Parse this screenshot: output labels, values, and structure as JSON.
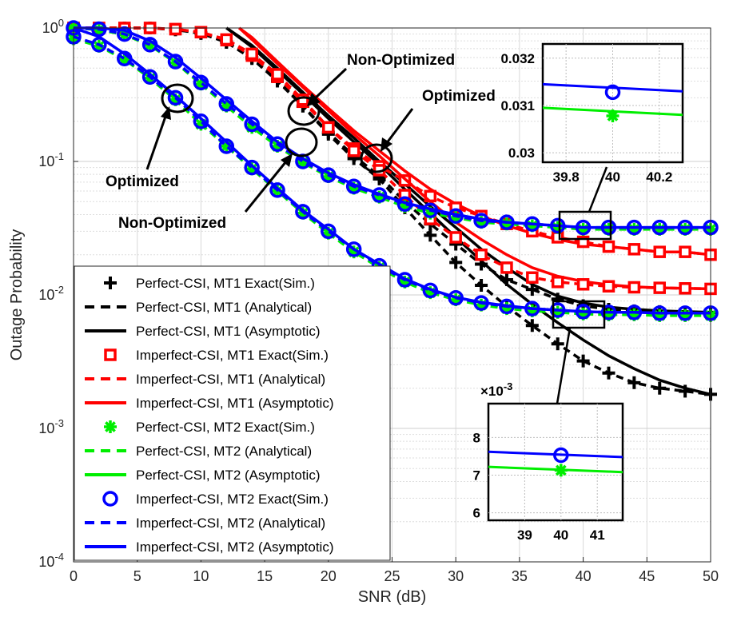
{
  "chart_data": {
    "type": "line",
    "yscale": "log",
    "xlabel": "SNR (dB)",
    "ylabel": "Outage Probability",
    "xlim": [
      0,
      50
    ],
    "ylim": [
      0.0001,
      1
    ],
    "grid": true,
    "x_ticks": [
      "0",
      "5",
      "10",
      "15",
      "20",
      "25",
      "30",
      "35",
      "40",
      "45",
      "50"
    ],
    "y_ticks": [
      {
        "base": "10",
        "exp": "0"
      },
      {
        "base": "10",
        "exp": "-1"
      },
      {
        "base": "10",
        "exp": "-2"
      },
      {
        "base": "10",
        "exp": "-3"
      },
      {
        "base": "10",
        "exp": "-4"
      }
    ],
    "legend": {
      "position": "bottom-left",
      "entries": [
        "Perfect-CSI, MT1 Exact(Sim.)",
        "Perfect-CSI, MT1 (Analytical)",
        "Perfect-CSI, MT1 (Asymptotic)",
        "Imperfect-CSI, MT1 Exact(Sim.)",
        "Imperfect-CSI, MT1 (Analytical)",
        "Imperfect-CSI, MT1 (Asymptotic)",
        "Perfect-CSI, MT2 Exact(Sim.)",
        "Perfect-CSI, MT2 (Analytical)",
        "Perfect-CSI, MT2 (Asymptotic)",
        "Imperfect-CSI, MT2 Exact(Sim.)",
        "Imperfect-CSI, MT2 (Analytical)",
        "Imperfect-CSI, MT2 (Asymptotic)"
      ]
    },
    "colors": {
      "mt1_perfect": "#000000",
      "mt1_imperfect": "#ff0000",
      "mt2_perfect": "#00ee00",
      "mt2_imperfect": "#0000ff"
    },
    "series": [
      {
        "name": "MT1 Optimized Perfect-CSI",
        "color": "#000000",
        "marker": "plus",
        "x": [
          0,
          2,
          4,
          6,
          8,
          10,
          12,
          14,
          16,
          18,
          20,
          22,
          24,
          26,
          28,
          30,
          32,
          34,
          36,
          38,
          40,
          42,
          44,
          46,
          48,
          50
        ],
        "values": [
          1.0,
          1.0,
          1.0,
          1.0,
          0.97,
          0.91,
          0.78,
          0.59,
          0.4,
          0.26,
          0.16,
          0.105,
          0.074,
          0.045,
          0.028,
          0.0175,
          0.0118,
          0.0082,
          0.0059,
          0.0043,
          0.0032,
          0.0026,
          0.0022,
          0.002,
          0.0019,
          0.0018
        ],
        "asymptote": {
          "x": [
            12,
            14,
            16,
            18,
            20,
            22,
            24,
            26,
            28,
            30,
            32,
            34,
            36,
            38,
            40,
            42,
            44,
            46,
            48,
            50
          ],
          "values": [
            1.0,
            0.72,
            0.48,
            0.32,
            0.21,
            0.14,
            0.095,
            0.062,
            0.041,
            0.027,
            0.018,
            0.012,
            0.0085,
            0.0062,
            0.0046,
            0.0035,
            0.0028,
            0.0023,
            0.002,
            0.0018
          ]
        }
      },
      {
        "name": "MT1 Non-Optimized Perfect-CSI",
        "color": "#000000",
        "marker": "plus",
        "x": [
          0,
          2,
          4,
          6,
          8,
          10,
          12,
          14,
          16,
          18,
          20,
          22,
          24,
          26,
          28,
          30,
          32,
          34,
          36,
          38,
          40,
          42,
          44,
          46,
          48,
          50
        ],
        "values": [
          1.0,
          1.0,
          1.0,
          1.0,
          0.97,
          0.92,
          0.79,
          0.6,
          0.41,
          0.26,
          0.165,
          0.11,
          0.078,
          0.05,
          0.034,
          0.024,
          0.017,
          0.013,
          0.011,
          0.0093,
          0.0083,
          0.0078,
          0.0076,
          0.0075,
          0.0074,
          0.0074
        ],
        "asymptote": {
          "x": [
            12,
            14,
            16,
            18,
            20,
            22,
            24,
            26,
            28,
            30,
            32,
            34,
            36,
            38,
            40,
            42,
            44,
            46,
            48,
            50
          ],
          "values": [
            1.0,
            0.74,
            0.5,
            0.33,
            0.22,
            0.15,
            0.1,
            0.068,
            0.046,
            0.032,
            0.022,
            0.016,
            0.012,
            0.0098,
            0.0087,
            0.0081,
            0.0078,
            0.0076,
            0.0075,
            0.0074
          ]
        }
      },
      {
        "name": "MT1 Optimized Imperfect-CSI",
        "color": "#ff0000",
        "marker": "square",
        "x": [
          0,
          2,
          4,
          6,
          8,
          10,
          12,
          14,
          16,
          18,
          20,
          22,
          24,
          26,
          28,
          30,
          32,
          34,
          36,
          38,
          40,
          42,
          44,
          46,
          48,
          50
        ],
        "values": [
          1.0,
          1.0,
          1.0,
          1.0,
          0.98,
          0.93,
          0.81,
          0.62,
          0.43,
          0.28,
          0.18,
          0.125,
          0.092,
          0.072,
          0.055,
          0.045,
          0.039,
          0.034,
          0.03,
          0.027,
          0.025,
          0.023,
          0.022,
          0.021,
          0.021,
          0.02
        ],
        "asymptote": {
          "x": [
            13,
            14,
            16,
            18,
            20,
            22,
            24,
            26,
            28,
            30,
            32,
            34,
            36,
            38,
            40,
            42,
            44,
            46,
            48,
            50
          ],
          "values": [
            1.0,
            0.85,
            0.56,
            0.37,
            0.25,
            0.17,
            0.12,
            0.085,
            0.062,
            0.048,
            0.039,
            0.033,
            0.029,
            0.026,
            0.024,
            0.023,
            0.022,
            0.021,
            0.021,
            0.02
          ]
        }
      },
      {
        "name": "MT1 Non-Optimized Imperfect-CSI",
        "color": "#ff0000",
        "marker": "square",
        "x": [
          0,
          2,
          4,
          6,
          8,
          10,
          12,
          14,
          16,
          18,
          20,
          22,
          24,
          26,
          28,
          30,
          32,
          34,
          36,
          38,
          40,
          42,
          44,
          46,
          48,
          50
        ],
        "values": [
          1.0,
          1.0,
          1.0,
          1.0,
          0.98,
          0.93,
          0.82,
          0.64,
          0.45,
          0.29,
          0.18,
          0.12,
          0.086,
          0.056,
          0.037,
          0.027,
          0.02,
          0.016,
          0.0135,
          0.0125,
          0.012,
          0.0116,
          0.0114,
          0.0113,
          0.0112,
          0.0111
        ],
        "asymptote": {
          "x": [
            13,
            14,
            16,
            18,
            20,
            22,
            24,
            26,
            28,
            30,
            32,
            34,
            36,
            38,
            40,
            42,
            44,
            46,
            48,
            50
          ],
          "values": [
            1.0,
            0.82,
            0.54,
            0.36,
            0.24,
            0.16,
            0.11,
            0.074,
            0.05,
            0.035,
            0.026,
            0.02,
            0.016,
            0.0138,
            0.0126,
            0.0119,
            0.0115,
            0.0113,
            0.0112,
            0.0111
          ]
        }
      },
      {
        "name": "MT2 Optimized Perfect-CSI",
        "color": "#00ee00",
        "marker": "star",
        "x": [
          0,
          2,
          4,
          6,
          8,
          10,
          12,
          14,
          16,
          18,
          20,
          22,
          24,
          26,
          28,
          30,
          32,
          34,
          36,
          38,
          40,
          42,
          44,
          46,
          48,
          50
        ],
        "values": [
          0.83,
          0.73,
          0.58,
          0.42,
          0.29,
          0.19,
          0.13,
          0.088,
          0.06,
          0.041,
          0.029,
          0.021,
          0.016,
          0.0125,
          0.0104,
          0.0092,
          0.0084,
          0.0079,
          0.0076,
          0.0074,
          0.0072,
          0.0071,
          0.0071,
          0.007,
          0.007,
          0.007
        ]
      },
      {
        "name": "MT2 Non-Optimized Perfect-CSI",
        "color": "#00ee00",
        "marker": "star",
        "x": [
          0,
          2,
          4,
          6,
          8,
          10,
          12,
          14,
          16,
          18,
          20,
          22,
          24,
          26,
          28,
          30,
          32,
          34,
          36,
          38,
          40,
          42,
          44,
          46,
          48,
          50
        ],
        "values": [
          1.0,
          0.97,
          0.89,
          0.74,
          0.55,
          0.38,
          0.26,
          0.18,
          0.13,
          0.098,
          0.077,
          0.063,
          0.054,
          0.046,
          0.041,
          0.038,
          0.035,
          0.034,
          0.033,
          0.032,
          0.031,
          0.031,
          0.031,
          0.031,
          0.031,
          0.031
        ]
      },
      {
        "name": "MT2 Optimized Imperfect-CSI",
        "color": "#0000ff",
        "marker": "circle",
        "x": [
          0,
          2,
          4,
          6,
          8,
          10,
          12,
          14,
          16,
          18,
          20,
          22,
          24,
          26,
          28,
          30,
          32,
          34,
          36,
          38,
          40,
          42,
          44,
          46,
          48,
          50
        ],
        "values": [
          0.86,
          0.75,
          0.59,
          0.43,
          0.3,
          0.2,
          0.13,
          0.09,
          0.061,
          0.042,
          0.03,
          0.022,
          0.0165,
          0.013,
          0.0108,
          0.0095,
          0.0087,
          0.0082,
          0.0079,
          0.0077,
          0.0075,
          0.0074,
          0.0074,
          0.0073,
          0.0073,
          0.0073
        ],
        "asymptote": {
          "x": [
            0,
            2,
            4,
            6,
            8,
            10,
            12,
            14,
            16,
            18,
            20,
            22,
            24,
            26,
            28,
            30,
            32,
            34,
            36,
            38,
            40,
            42,
            44,
            46,
            48,
            50
          ],
          "values": [
            1.0,
            0.86,
            0.64,
            0.45,
            0.31,
            0.21,
            0.14,
            0.093,
            0.063,
            0.043,
            0.031,
            0.022,
            0.017,
            0.0132,
            0.011,
            0.0096,
            0.0088,
            0.0083,
            0.0079,
            0.0077,
            0.0075,
            0.0074,
            0.0074,
            0.0073,
            0.0073,
            0.0073
          ]
        }
      },
      {
        "name": "MT2 Non-Optimized Imperfect-CSI",
        "color": "#0000ff",
        "marker": "circle",
        "x": [
          0,
          2,
          4,
          6,
          8,
          10,
          12,
          14,
          16,
          18,
          20,
          22,
          24,
          26,
          28,
          30,
          32,
          34,
          36,
          38,
          40,
          42,
          44,
          46,
          48,
          50
        ],
        "values": [
          1.0,
          0.98,
          0.9,
          0.75,
          0.56,
          0.39,
          0.27,
          0.19,
          0.135,
          0.1,
          0.079,
          0.065,
          0.056,
          0.048,
          0.043,
          0.039,
          0.036,
          0.035,
          0.034,
          0.033,
          0.032,
          0.032,
          0.032,
          0.032,
          0.032,
          0.032
        ],
        "asymptote": {
          "x": [
            0,
            2,
            4,
            6,
            8,
            10,
            12,
            14,
            16,
            18,
            20,
            22,
            24,
            26,
            28,
            30,
            32,
            34,
            36,
            38,
            40,
            42,
            44,
            46,
            48,
            50
          ],
          "values": [
            1.0,
            1.0,
            0.96,
            0.8,
            0.6,
            0.42,
            0.29,
            0.2,
            0.14,
            0.105,
            0.082,
            0.067,
            0.057,
            0.049,
            0.044,
            0.04,
            0.037,
            0.035,
            0.034,
            0.033,
            0.032,
            0.032,
            0.032,
            0.032,
            0.032,
            0.032
          ]
        }
      }
    ],
    "annotations": {
      "non_optimized_top": "Non-Optimized",
      "optimized_right": "Optimized",
      "optimized_left": "Optimized",
      "non_optimized_left": "Non-Optimized"
    },
    "inset_top": {
      "xlim": [
        39.7,
        40.3
      ],
      "ylim": [
        0.0298,
        0.0323
      ],
      "x_ticks": [
        "39.8",
        "40",
        "40.2"
      ],
      "y_ticks": [
        "0.032",
        "0.031",
        "0.03"
      ],
      "blue_line": [
        0.03145,
        0.0313
      ],
      "green_line": [
        0.03095,
        0.0308
      ],
      "marker_blue": 0.03128,
      "marker_green": 0.03078
    },
    "inset_bottom": {
      "xlim": [
        38,
        41.7
      ],
      "ylim": [
        5.8,
        8.9
      ],
      "scale_label": {
        "base": "×10",
        "exp": "-3"
      },
      "x_ticks": [
        "39",
        "40",
        "41"
      ],
      "y_ticks": [
        "8",
        "7",
        "6"
      ],
      "blue_line": [
        7.62,
        7.48
      ],
      "green_line": [
        7.22,
        7.08
      ],
      "marker_blue": 7.53,
      "marker_green": 7.13
    }
  }
}
